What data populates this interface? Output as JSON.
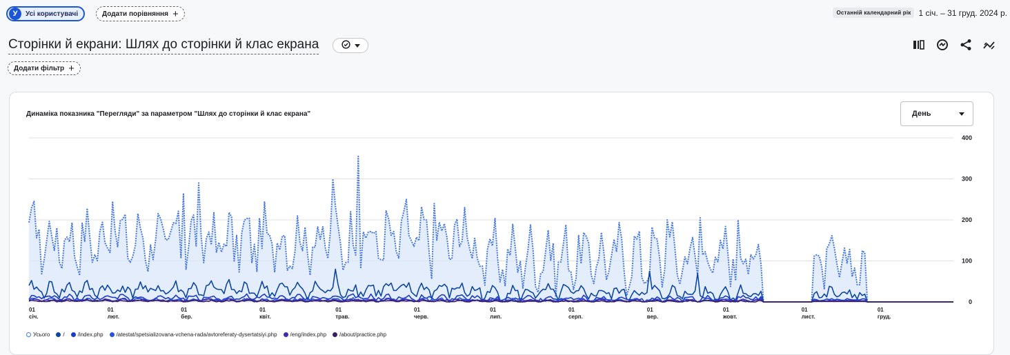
{
  "header": {
    "segment": {
      "avatar_letter": "У",
      "label": "Усі користувачі"
    },
    "compare": {
      "label": "Додати порівняння"
    },
    "date_preset": "Останній календарний рік",
    "date_range": "1 січ. – 31 груд. 2024 р.",
    "title": "Сторінки й екрани: Шлях до сторінки й клас екрана",
    "filter": {
      "label": "Додати фільтр"
    }
  },
  "icons": [
    "check-circle-icon",
    "chevron-down-icon",
    "compare-columns-icon",
    "insights-icon",
    "share-icon",
    "trend-icon"
  ],
  "card": {
    "metric_selector": "День"
  },
  "chart_data": {
    "type": "line",
    "title": "Динаміка показника \"Перегляди\" за параметром \"Шлях до сторінки й клас екрана\"",
    "ylim": [
      0,
      400
    ],
    "yticks": [
      "400",
      "300",
      "200",
      "100",
      "0"
    ],
    "grid": true,
    "legend_position": "bottom-left",
    "x_ticks": [
      {
        "day": "01",
        "month": "січ."
      },
      {
        "day": "01",
        "month": "лют."
      },
      {
        "day": "01",
        "month": "бер."
      },
      {
        "day": "01",
        "month": "квіт."
      },
      {
        "day": "01",
        "month": "трав."
      },
      {
        "day": "01",
        "month": "черв."
      },
      {
        "day": "01",
        "month": "лип."
      },
      {
        "day": "01",
        "month": "серп."
      },
      {
        "day": "01",
        "month": "вер."
      },
      {
        "day": "01",
        "month": "жовт."
      },
      {
        "day": "01",
        "month": "лист."
      },
      {
        "day": "01",
        "month": "груд."
      }
    ],
    "gaps": [
      {
        "from": 290,
        "to": 310
      },
      {
        "from": 331,
        "to": 366
      }
    ],
    "series": [
      {
        "name": "Усього",
        "color": "#4577e6",
        "dashed": true,
        "area": true,
        "base": 150,
        "amp": 70,
        "amp_late": 55,
        "peaks": [
          {
            "x": 2,
            "y": 245
          },
          {
            "x": 33,
            "y": 245
          },
          {
            "x": 61,
            "y": 265
          },
          {
            "x": 67,
            "y": 290
          },
          {
            "x": 120,
            "y": 300
          },
          {
            "x": 130,
            "y": 355
          },
          {
            "x": 149,
            "y": 250
          },
          {
            "x": 160,
            "y": 240
          },
          {
            "x": 172,
            "y": 230
          },
          {
            "x": 205,
            "y": 175
          },
          {
            "x": 252,
            "y": 200
          },
          {
            "x": 265,
            "y": 205
          },
          {
            "x": 280,
            "y": 200
          },
          {
            "x": 339,
            "y": 295
          },
          {
            "x": 350,
            "y": 200
          }
        ]
      },
      {
        "name": "/",
        "color": "#0d47a1",
        "dashed": false,
        "area": false,
        "base": 30,
        "amp": 18,
        "amp_late": 18,
        "peaks": [
          {
            "x": 121,
            "y": 80
          },
          {
            "x": 338,
            "y": 100
          },
          {
            "x": 264,
            "y": 70
          },
          {
            "x": 245,
            "y": 75
          }
        ]
      },
      {
        "name": "/index.php",
        "color": "#1a3cc8",
        "dashed": false,
        "area": false,
        "base": 10,
        "amp": 7,
        "amp_late": 3,
        "peaks": []
      },
      {
        "name": "/atestat/spetsializovana-vchena-rada/avtoreferaty-dysertatsiyi.php",
        "color": "#2553e0",
        "dashed": false,
        "area": false,
        "base": 5,
        "amp": 4,
        "amp_late": 1,
        "peaks": []
      },
      {
        "name": "/eng/index.php",
        "color": "#3f2ab8",
        "dashed": false,
        "area": false,
        "base": 4,
        "amp": 3,
        "amp_late": 1,
        "peaks": []
      },
      {
        "name": "/about/practice.php",
        "color": "#3b1e5c",
        "dashed": false,
        "area": false,
        "base": 2,
        "amp": 2,
        "amp_late": 0,
        "peaks": []
      }
    ]
  }
}
